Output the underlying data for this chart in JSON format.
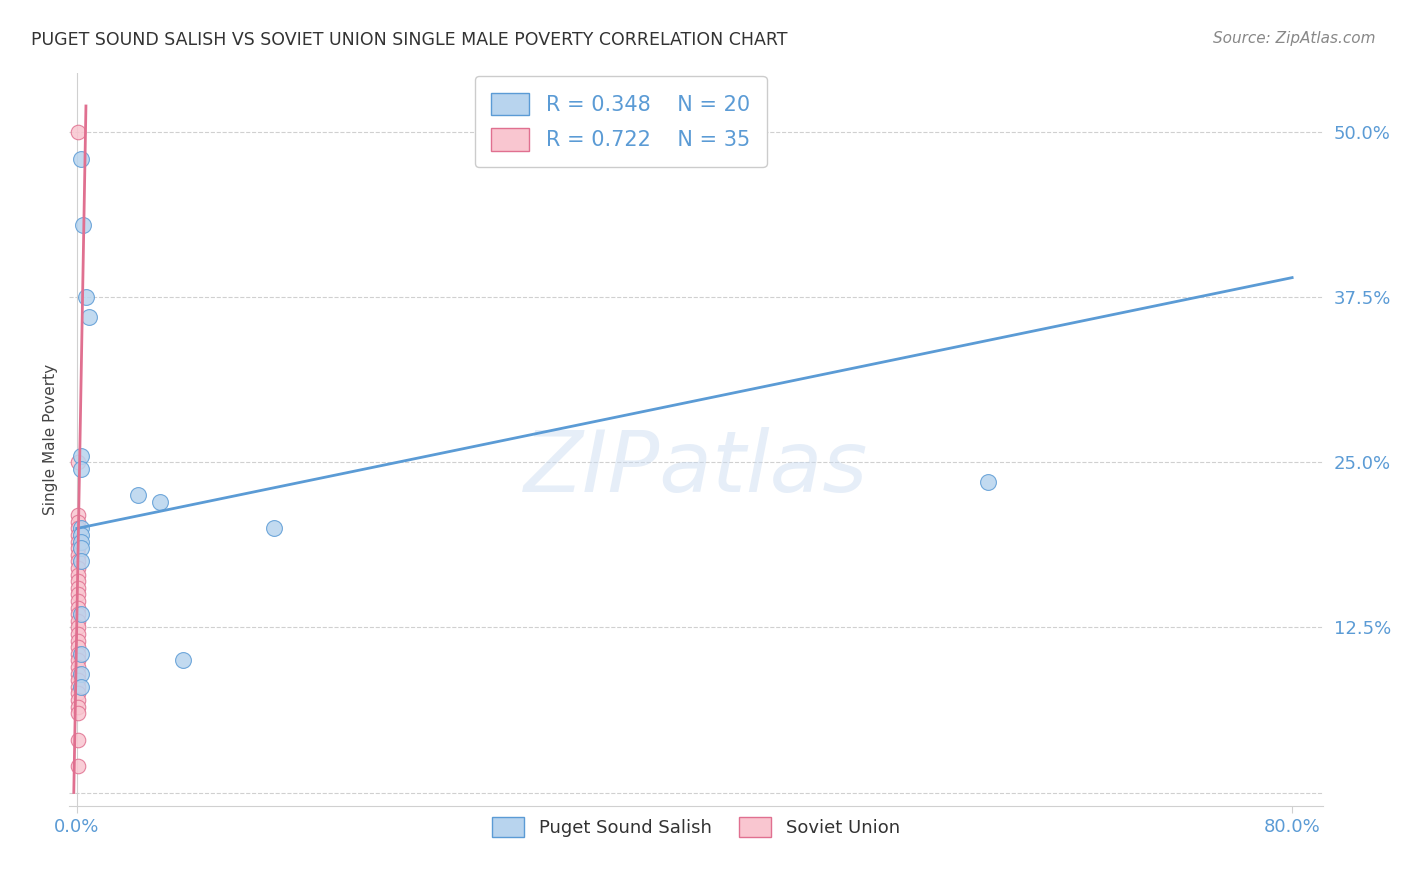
{
  "title": "PUGET SOUND SALISH VS SOVIET UNION SINGLE MALE POVERTY CORRELATION CHART",
  "source": "Source: ZipAtlas.com",
  "ylabel": "Single Male Poverty",
  "watermark": "ZIPatlas",
  "blue_R": 0.348,
  "blue_N": 20,
  "pink_R": 0.722,
  "pink_N": 35,
  "blue_color": "#b8d4ee",
  "blue_line_color": "#5b9bd5",
  "pink_color": "#f9c6d0",
  "pink_line_color": "#e07090",
  "blue_scatter_x": [
    0.004,
    0.006,
    0.008,
    0.003,
    0.003,
    0.003,
    0.003,
    0.003,
    0.003,
    0.003,
    0.003,
    0.04,
    0.055,
    0.07,
    0.6,
    0.13,
    0.003,
    0.003,
    0.003,
    0.003
  ],
  "blue_scatter_y": [
    0.43,
    0.375,
    0.36,
    0.255,
    0.245,
    0.2,
    0.195,
    0.19,
    0.185,
    0.175,
    0.135,
    0.225,
    0.22,
    0.1,
    0.235,
    0.2,
    0.105,
    0.09,
    0.08,
    0.48
  ],
  "pink_scatter_x": [
    0.001,
    0.001,
    0.001,
    0.001,
    0.001,
    0.001,
    0.001,
    0.001,
    0.001,
    0.001,
    0.001,
    0.001,
    0.001,
    0.001,
    0.001,
    0.001,
    0.001,
    0.001,
    0.001,
    0.001,
    0.001,
    0.001,
    0.001,
    0.001,
    0.001,
    0.001,
    0.001,
    0.001,
    0.001,
    0.001,
    0.001,
    0.001,
    0.001,
    0.001,
    0.001
  ],
  "pink_scatter_y": [
    0.5,
    0.25,
    0.21,
    0.205,
    0.2,
    0.195,
    0.19,
    0.185,
    0.18,
    0.175,
    0.17,
    0.165,
    0.16,
    0.155,
    0.15,
    0.145,
    0.14,
    0.135,
    0.13,
    0.125,
    0.12,
    0.115,
    0.11,
    0.105,
    0.1,
    0.095,
    0.09,
    0.085,
    0.08,
    0.075,
    0.07,
    0.065,
    0.06,
    0.04,
    0.02
  ],
  "blue_line_x": [
    0.0,
    0.8
  ],
  "blue_line_y": [
    0.2,
    0.39
  ],
  "pink_line_x": [
    -0.002,
    0.006
  ],
  "pink_line_y": [
    0.0,
    0.52
  ],
  "xlim": [
    -0.005,
    0.82
  ],
  "ylim": [
    -0.01,
    0.545
  ],
  "ytick_vals": [
    0.0,
    0.125,
    0.25,
    0.375,
    0.5
  ],
  "ytick_labels": [
    "",
    "12.5%",
    "25.0%",
    "37.5%",
    "50.0%"
  ],
  "xtick_vals": [
    0.0,
    0.8
  ],
  "xtick_labels": [
    "0.0%",
    "80.0%"
  ],
  "title_color": "#333333",
  "source_color": "#888888",
  "tick_color": "#5b9bd5",
  "grid_color": "#d0d0d0"
}
